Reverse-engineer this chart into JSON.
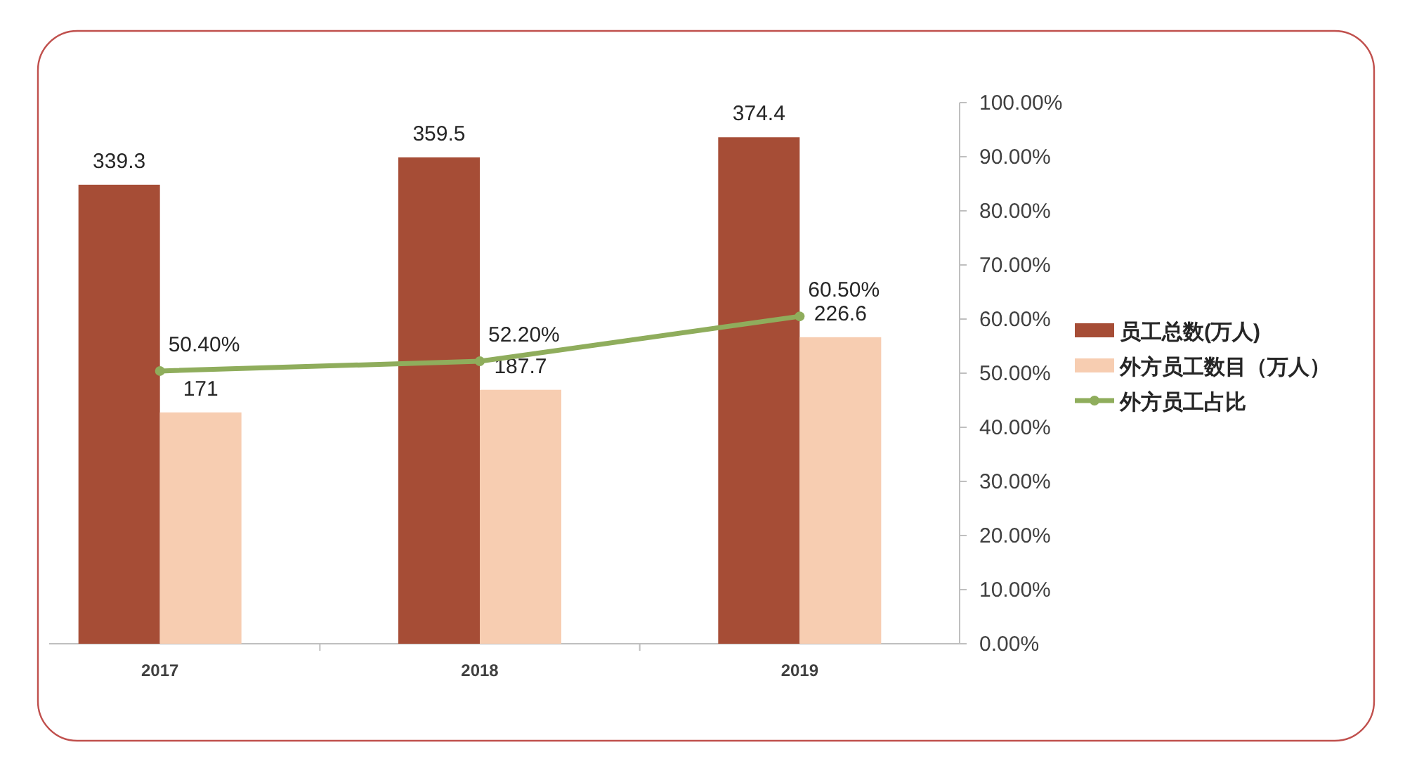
{
  "chart_data": {
    "type": "bar",
    "categories": [
      "2017",
      "2018",
      "2019"
    ],
    "series": [
      {
        "name": "员工总数(万人)",
        "color": "#a64d36",
        "values": [
          339.3,
          359.5,
          374.4
        ]
      },
      {
        "name": "外方员工数目（万人）",
        "color": "#f7cdb1",
        "values": [
          171,
          187.7,
          226.6
        ]
      },
      {
        "name": "外方员工占比",
        "type": "line",
        "axis": "y2",
        "color": "#8fad5c",
        "marker": "circle",
        "values": [
          50.4,
          52.2,
          60.5
        ],
        "value_labels": [
          "50.40%",
          "52.20%",
          "60.50%"
        ]
      }
    ],
    "ylim": [
      0,
      400
    ],
    "y2lim": [
      0,
      100
    ],
    "y2ticks": [
      {
        "value": 0,
        "label": "0.00%"
      },
      {
        "value": 10,
        "label": "10.00%"
      },
      {
        "value": 20,
        "label": "20.00%"
      },
      {
        "value": 30,
        "label": "30.00%"
      },
      {
        "value": 40,
        "label": "40.00%"
      },
      {
        "value": 50,
        "label": "50.00%"
      },
      {
        "value": 60,
        "label": "60.00%"
      },
      {
        "value": 70,
        "label": "70.00%"
      },
      {
        "value": 80,
        "label": "80.00%"
      },
      {
        "value": 90,
        "label": "90.00%"
      },
      {
        "value": 100,
        "label": "100.00%"
      }
    ],
    "data_labels": true,
    "legend": "right"
  }
}
